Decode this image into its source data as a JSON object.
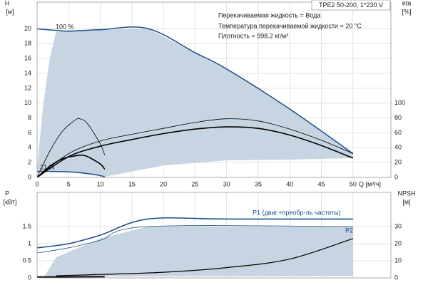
{
  "chart_data": [
    {
      "type": "line",
      "title": "TPE2 50-200, 1*230 V",
      "annotations": [
        "Перекачиваемая жидкость = Вода",
        "Температура перекачиваемой жидкости = 20 °C",
        "Плотность = 998.2 кг/м³",
        "100 %",
        "21 %"
      ],
      "ylabel": "H",
      "yunit": "[м]",
      "y2label": "eta",
      "y2unit": "[%]",
      "xlabel": "Q [м³/ч]",
      "xlim": [
        0,
        56
      ],
      "xticks": [
        0,
        5,
        10,
        15,
        20,
        25,
        30,
        35,
        40,
        45,
        50
      ],
      "xtick_labels": true,
      "ylim": [
        0,
        23.6
      ],
      "yticks": [
        0,
        2,
        4,
        6,
        8,
        10,
        12,
        14,
        16,
        18,
        20
      ],
      "y2lim": [
        0,
        236
      ],
      "y2ticks": [
        0,
        20,
        40,
        60,
        80,
        100
      ],
      "grid": true,
      "series": [
        {
          "fill": true,
          "color": "#c7d4e1",
          "x": [
            3,
            5,
            10,
            17.5,
            25,
            30,
            40,
            50,
            50,
            40,
            30,
            20,
            10.7,
            5,
            0,
            0.3,
            1,
            2
          ],
          "values": [
            19.6,
            19.8,
            19.9,
            20.05,
            16.8,
            14.6,
            9.2,
            3.2,
            2.6,
            2.4,
            2.3,
            1.6,
            0.1,
            0.75,
            0.85,
            4,
            10,
            16
          ]
        },
        {
          "color": "#1f4e8c",
          "width": 1.5,
          "x": [
            0,
            3,
            5,
            10,
            17.5,
            25,
            30,
            40,
            50
          ],
          "values": [
            20,
            19.8,
            19.7,
            19.9,
            20.05,
            16.8,
            14.6,
            9.2,
            3.2
          ]
        },
        {
          "color": "#1f4e8c",
          "width": 1.5,
          "x": [
            0,
            3,
            6,
            9,
            10.7
          ],
          "values": [
            0.8,
            0.8,
            0.7,
            0.4,
            0.1
          ]
        },
        {
          "color": "#000000",
          "width": 0.8,
          "axis": "y2",
          "x": [
            0,
            5,
            10,
            15,
            20,
            25,
            30,
            35,
            40,
            45,
            50
          ],
          "values": [
            0,
            32,
            49,
            58,
            66,
            74,
            79,
            76,
            65,
            50,
            32
          ]
        },
        {
          "color": "#000000",
          "width": 1.6,
          "axis": "y2",
          "x": [
            0,
            5,
            10,
            15,
            20,
            25,
            30,
            35,
            40,
            45,
            50
          ],
          "values": [
            0,
            28,
            42,
            51,
            59,
            65,
            68,
            66,
            57,
            43,
            26
          ]
        },
        {
          "color": "#000000",
          "width": 0.8,
          "axis": "y2",
          "x": [
            0,
            2,
            4,
            6,
            6.8,
            8,
            10,
            10.7
          ],
          "values": [
            0,
            35,
            62,
            77,
            79,
            72,
            45,
            30
          ]
        },
        {
          "color": "#000000",
          "width": 1.6,
          "axis": "y2",
          "x": [
            0,
            2,
            4,
            6,
            7,
            8,
            10,
            10.7
          ],
          "values": [
            0,
            15,
            25,
            29,
            30,
            28,
            18,
            11
          ]
        }
      ]
    },
    {
      "type": "line",
      "ylabel": "P",
      "yunit": "[кВт]",
      "y2label": "NPSH",
      "y2unit": "[м]",
      "xlim": [
        0,
        56
      ],
      "xticks": [
        0,
        5,
        10,
        15,
        20,
        25,
        30,
        35,
        40,
        45,
        50
      ],
      "xtick_labels": false,
      "ylim": [
        0,
        2.5
      ],
      "yticks": [
        0,
        0.5,
        1,
        1.5
      ],
      "y2lim": [
        0,
        50
      ],
      "y2ticks": [
        0,
        10,
        20,
        30
      ],
      "grid": true,
      "series": [
        {
          "fill": true,
          "color": "#c7d4e1",
          "x": [
            1,
            3,
            10,
            17.5,
            50,
            50,
            10.7,
            3
          ],
          "values": [
            0,
            0.6,
            1.15,
            1.5,
            1.5,
            0.05,
            0.04,
            0
          ]
        },
        {
          "name": "P1 (двиг.+преобр-ль частоты)",
          "color": "#1f4e8c",
          "width": 1.6,
          "x": [
            0,
            5,
            10,
            17.5,
            30,
            50
          ],
          "values": [
            0.88,
            1.0,
            1.25,
            1.72,
            1.72,
            1.72
          ]
        },
        {
          "name": "P2",
          "color": "#1f4e8c",
          "width": 0.8,
          "x": [
            0,
            5,
            10,
            17.5,
            50
          ],
          "values": [
            0.73,
            0.88,
            1.1,
            1.5,
            1.5
          ]
        },
        {
          "color": "#000000",
          "width": 1.2,
          "axis": "y2",
          "x": [
            3,
            10,
            20,
            30,
            40,
            50
          ],
          "values": [
            1.2,
            2,
            3.3,
            6,
            11,
            23
          ]
        },
        {
          "color": "#000000",
          "width": 1.8,
          "axis": "y2",
          "x": [
            0,
            5,
            10.7
          ],
          "values": [
            0.6,
            0.6,
            0.7
          ]
        }
      ]
    }
  ]
}
